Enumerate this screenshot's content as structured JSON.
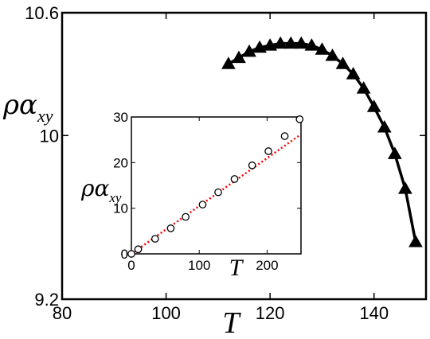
{
  "chart_data": [
    {
      "type": "line",
      "xlabel": "T",
      "ylabel": {
        "main": "ρα",
        "sub": "xy"
      },
      "xlim": [
        80,
        150
      ],
      "ylim": [
        9.2,
        10.6
      ],
      "xticks": [
        80,
        100,
        120,
        140
      ],
      "yticks": [
        9.2,
        10,
        10.6
      ],
      "xtick_labels": [
        "80",
        "100",
        "120",
        "140"
      ],
      "ytick_labels": [
        "9.2",
        "10",
        "10.6"
      ],
      "grid": false,
      "series": [
        {
          "marker": "triangle",
          "color": "#000000",
          "points": [
            {
              "x": 112,
              "y": 10.35
            },
            {
              "x": 114,
              "y": 10.38
            },
            {
              "x": 116,
              "y": 10.41
            },
            {
              "x": 118,
              "y": 10.43
            },
            {
              "x": 120,
              "y": 10.44
            },
            {
              "x": 122,
              "y": 10.45
            },
            {
              "x": 124,
              "y": 10.45
            },
            {
              "x": 126,
              "y": 10.45
            },
            {
              "x": 128,
              "y": 10.44
            },
            {
              "x": 130,
              "y": 10.42
            },
            {
              "x": 132,
              "y": 10.39
            },
            {
              "x": 134,
              "y": 10.35
            },
            {
              "x": 136,
              "y": 10.3
            },
            {
              "x": 138,
              "y": 10.23
            },
            {
              "x": 140,
              "y": 10.14
            },
            {
              "x": 142,
              "y": 10.04
            },
            {
              "x": 144,
              "y": 9.91
            },
            {
              "x": 146,
              "y": 9.74
            },
            {
              "x": 148,
              "y": 9.48
            }
          ]
        }
      ]
    },
    {
      "type": "scatter",
      "inset": true,
      "xlabel": "T",
      "ylabel": {
        "main": "ρα",
        "sub": "xy"
      },
      "xlim": [
        0,
        250
      ],
      "ylim": [
        0,
        30
      ],
      "xticks": [
        0,
        100,
        200
      ],
      "yticks": [
        0,
        10,
        20,
        30
      ],
      "xtick_labels": [
        "0",
        "100",
        "200"
      ],
      "ytick_labels": [
        "0",
        "10",
        "20",
        "30"
      ],
      "grid": false,
      "series": [
        {
          "marker": "open-circle",
          "color": "#000000",
          "points": [
            {
              "x": 0,
              "y": 0.0
            },
            {
              "x": 10,
              "y": 1.0
            },
            {
              "x": 35,
              "y": 3.3
            },
            {
              "x": 58,
              "y": 5.6
            },
            {
              "x": 80,
              "y": 8.1
            },
            {
              "x": 105,
              "y": 10.8
            },
            {
              "x": 128,
              "y": 13.5
            },
            {
              "x": 152,
              "y": 16.4
            },
            {
              "x": 178,
              "y": 19.4
            },
            {
              "x": 202,
              "y": 22.5
            },
            {
              "x": 226,
              "y": 25.8
            },
            {
              "x": 248,
              "y": 29.5
            }
          ]
        },
        {
          "marker": "dotted-line",
          "color": "#ff0000",
          "points": [
            {
              "x": 0,
              "y": 0.0
            },
            {
              "x": 248,
              "y": 26.0
            }
          ]
        }
      ]
    }
  ]
}
